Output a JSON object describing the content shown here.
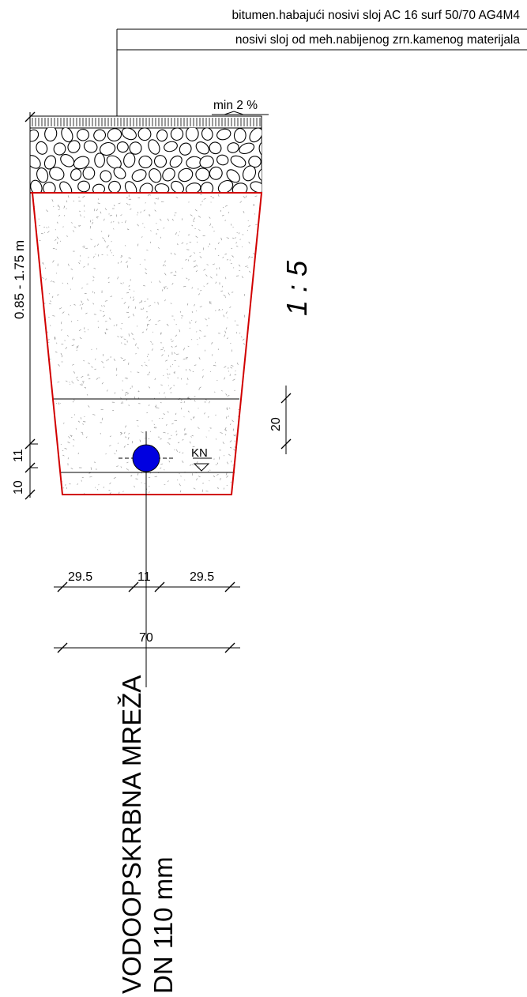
{
  "layers": {
    "asphalt_label": "bitumen.habajući nosivi sloj AC 16 surf 50/70 AG4M4",
    "base_label": "nosivi sloj od meh.nabijenog zrn.kamenog materijala"
  },
  "slope_label": "min 2 %",
  "scale_label": "1 : 5",
  "depth_label": "0.85 - 1.75 m",
  "dims": {
    "d11_vertical": "11",
    "d10_vertical": "10",
    "d20": "20",
    "w_left": "29.5",
    "w_pipe": "11",
    "w_right": "29.5",
    "w_total": "70"
  },
  "kn_label": "KN",
  "title": {
    "line1": "VODOOPSKRBNA MREŽA",
    "line2": "DN 110 mm"
  },
  "colors": {
    "pipe": "#0000e0",
    "trench_outline": "#d10000"
  }
}
